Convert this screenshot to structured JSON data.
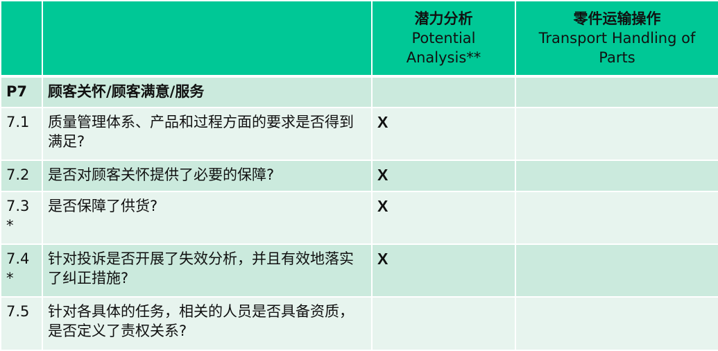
{
  "header": {
    "col3_zh": "潜力分析",
    "col3_en": "Potential Analysis**",
    "col4_zh": "零件运输操作",
    "col4_en": "Transport Handling of Parts"
  },
  "section": {
    "id": "P7",
    "title": "顾客关怀/顾客满意/服务"
  },
  "rows": [
    {
      "id": "7.1",
      "text": "质量管理体系、产品和过程方面的要求是否得到满足?",
      "potential": "X",
      "transport": ""
    },
    {
      "id": "7.2",
      "text": "是否对顾客关怀提供了必要的保障?",
      "potential": "X",
      "transport": ""
    },
    {
      "id": "7.3 *",
      "text": "是否保障了供货?",
      "potential": "X",
      "transport": ""
    },
    {
      "id": "7.4 *",
      "text": "针对投诉是否开展了失效分析，并且有效地落实了纠正措施?",
      "potential": "X",
      "transport": ""
    },
    {
      "id": "7.5",
      "text": "针对各具体的任务，相关的人员是否具备资质，是否定义了责权关系?",
      "potential": "",
      "transport": ""
    }
  ]
}
